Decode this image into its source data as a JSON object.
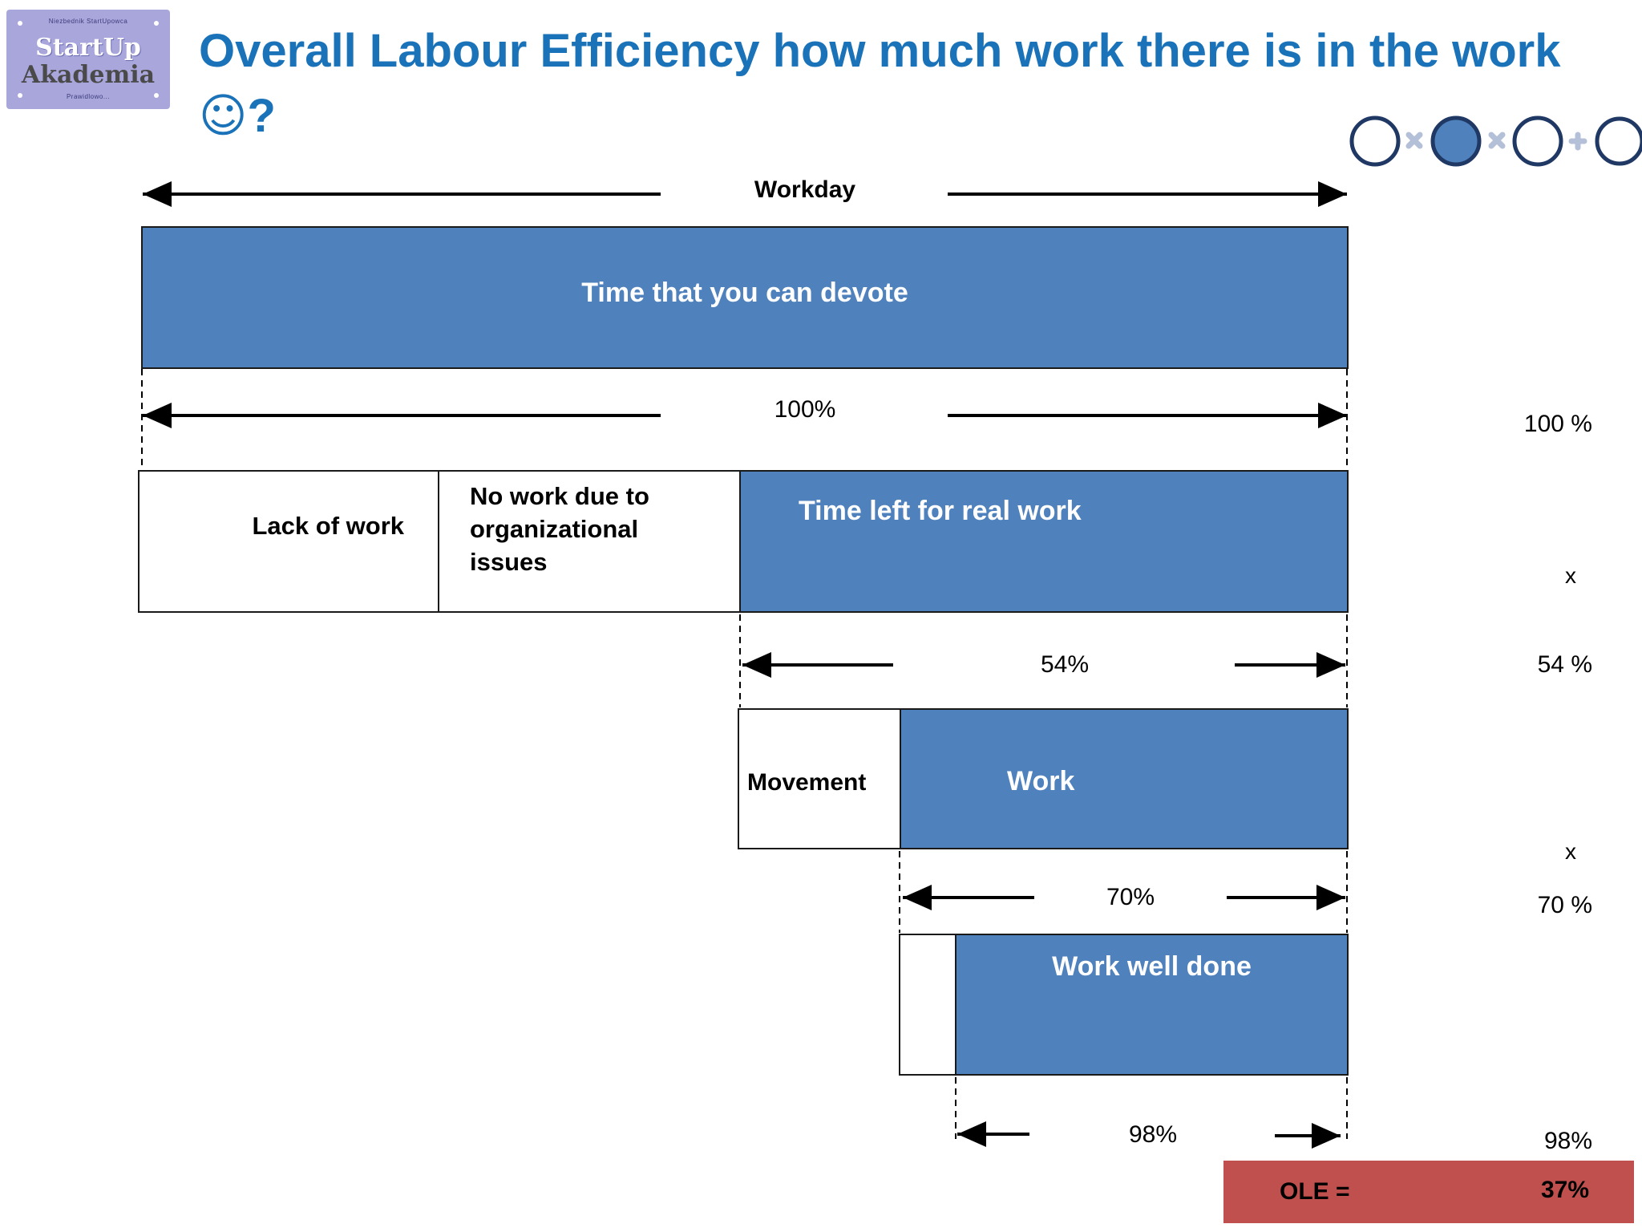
{
  "logo": {
    "tagline_top": "Niezbednik StartUpowca",
    "line1": "StartUp",
    "line2": "Akademia",
    "tagline_bottom": "Prawidlowo..."
  },
  "title": {
    "text": "Overall Labour Efficiency how much work there is in the work",
    "emoji": "☺",
    "suffix": "?"
  },
  "formula_icons": [
    "empty-circle-icon",
    "multiply-icon",
    "filled-circle-icon",
    "multiply-icon",
    "empty-circle-icon",
    "plus-icon",
    "empty-circle-icon"
  ],
  "colors": {
    "bar_blue": "#4f81bd",
    "title_blue": "#1a72b8",
    "ole_red": "#c0504d",
    "icon_navy": "#1f3864",
    "icon_light": "#b4c0d8"
  },
  "diagram": {
    "workday_label": "Workday",
    "bar1": {
      "label": "Time that you can devote",
      "span_label": "100%"
    },
    "bar2": {
      "lack_of_work": "Lack of work",
      "no_work_org": "No work due to\norganizational\nissues",
      "time_left": "Time left for real work",
      "span_label": "54%"
    },
    "bar3": {
      "movement": "Movement",
      "work": "Work",
      "span_label": "70%"
    },
    "bar4": {
      "work_well_done": "Work well done",
      "span_label": "98%"
    }
  },
  "right_column": {
    "values": [
      "100 %",
      "x",
      "54 %",
      "x",
      "70 %",
      "98%"
    ],
    "ole_label": "OLE =",
    "ole_value": "37%"
  }
}
